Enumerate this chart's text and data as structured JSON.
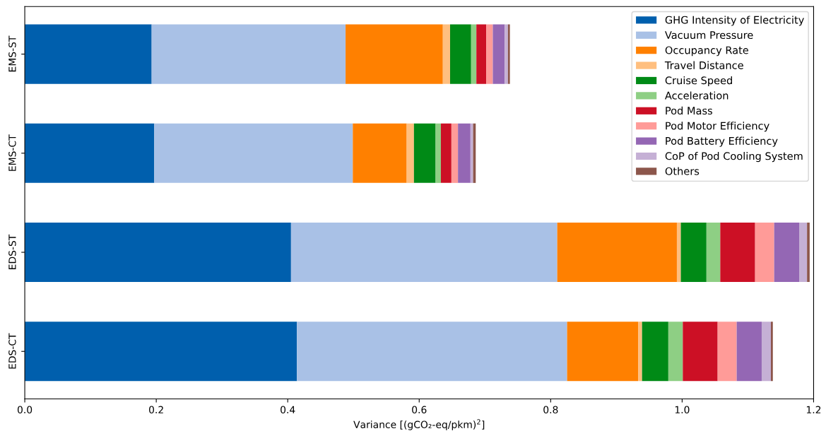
{
  "chart_data": {
    "type": "bar",
    "orientation": "horizontal",
    "stacked": true,
    "xlabel": "Variance [(gCO₂-eq/pkm)$^{2}$]",
    "categories": [
      "EMS-ST",
      "EMS-CT",
      "EDS-ST",
      "EDS-CT"
    ],
    "series": [
      {
        "name": "GHG Intensity of Electricity",
        "color": "#005fad",
        "values": [
          0.193,
          0.197,
          0.405,
          0.414
        ]
      },
      {
        "name": "Vacuum Pressure",
        "color": "#a9c1e6",
        "values": [
          0.295,
          0.302,
          0.405,
          0.411
        ]
      },
      {
        "name": "Occupancy Rate",
        "color": "#ff8000",
        "values": [
          0.148,
          0.082,
          0.182,
          0.108
        ]
      },
      {
        "name": "Travel Distance",
        "color": "#ffbf7f",
        "values": [
          0.011,
          0.011,
          0.006,
          0.006
        ]
      },
      {
        "name": "Cruise Speed",
        "color": "#008a16",
        "values": [
          0.032,
          0.033,
          0.039,
          0.04
        ]
      },
      {
        "name": "Acceleration",
        "color": "#8ecf84",
        "values": [
          0.008,
          0.008,
          0.021,
          0.022
        ]
      },
      {
        "name": "Pod Mass",
        "color": "#cc1025",
        "values": [
          0.015,
          0.016,
          0.053,
          0.053
        ]
      },
      {
        "name": "Pod Motor Efficiency",
        "color": "#ff9b98",
        "values": [
          0.01,
          0.01,
          0.029,
          0.029
        ]
      },
      {
        "name": "Pod Battery Efficiency",
        "color": "#9467b4",
        "values": [
          0.018,
          0.019,
          0.038,
          0.038
        ]
      },
      {
        "name": "CoP of Pod Cooling System",
        "color": "#c5b0d5",
        "values": [
          0.005,
          0.004,
          0.012,
          0.014
        ]
      },
      {
        "name": "Others",
        "color": "#8c564b",
        "values": [
          0.003,
          0.004,
          0.004,
          0.003
        ]
      }
    ],
    "xlim": [
      0,
      1.2
    ],
    "xticks": [
      {
        "value": 0,
        "label": "0.0"
      },
      0.2,
      0.4,
      0.6,
      0.8,
      {
        "value": 1,
        "label": "1.0"
      },
      1.2
    ],
    "legend": "top right",
    "grid": false
  }
}
